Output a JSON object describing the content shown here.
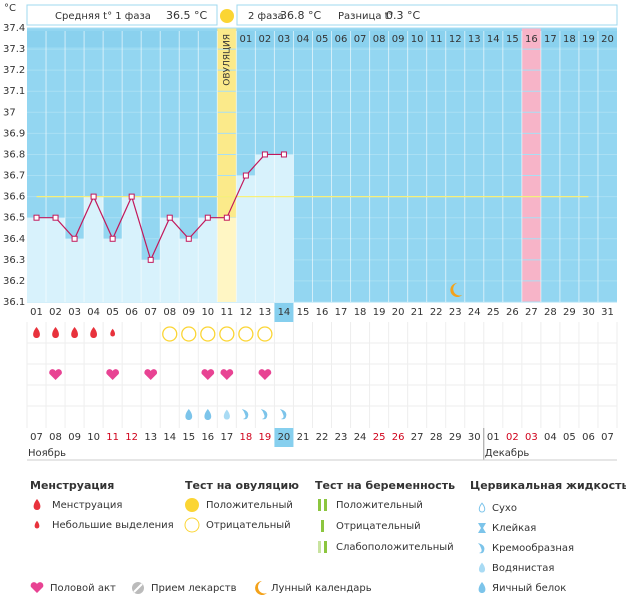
{
  "header": {
    "phase1_label": "Средняя t° 1 фаза",
    "phase1_value": "36.5 °C",
    "phase2_label": "2 фаза",
    "phase2_value": "36.8 °C",
    "diff_label": "Разница t°",
    "diff_value": "0.3 °C"
  },
  "chart_data": {
    "type": "line",
    "y_unit": "°C",
    "ylim": [
      36.1,
      37.4
    ],
    "yticks": [
      36.1,
      36.2,
      36.3,
      36.4,
      36.5,
      36.6,
      36.7,
      36.8,
      36.9,
      37,
      37.1,
      37.2,
      37.3,
      37.4
    ],
    "ovulation_label": "ОВУЛЯЦИЯ",
    "ovulation_column": 11,
    "marked_column": 27,
    "highlight_column": 14,
    "highlight_date_column": 14,
    "moon_column": 23,
    "coverline": 36.6,
    "cycle_days": [
      "01",
      "02",
      "03",
      "04",
      "05",
      "06",
      "07",
      "08",
      "09",
      "10",
      "11",
      "12",
      "13",
      "14",
      "15",
      "16",
      "17",
      "18",
      "19",
      "20",
      "21",
      "22",
      "23",
      "24",
      "25",
      "26",
      "27",
      "28",
      "29",
      "30",
      "31"
    ],
    "post_ovulation_days": [
      null,
      null,
      null,
      null,
      null,
      null,
      null,
      null,
      null,
      null,
      null,
      "01",
      "02",
      "03",
      "04",
      "05",
      "06",
      "07",
      "08",
      "09",
      "10",
      "11",
      "12",
      "13",
      "14",
      "15",
      "16",
      "17",
      "18",
      "19",
      "20"
    ],
    "temps": [
      36.5,
      36.5,
      36.4,
      36.6,
      36.4,
      36.6,
      36.3,
      36.5,
      36.4,
      36.5,
      36.5,
      36.7,
      36.8,
      36.8,
      null,
      null,
      null,
      null,
      null,
      null,
      null,
      null,
      null,
      null,
      null,
      null,
      null,
      null,
      null,
      null,
      null
    ],
    "dates": [
      "07",
      "08",
      "09",
      "10",
      "11",
      "12",
      "13",
      "14",
      "15",
      "16",
      "17",
      "18",
      "19",
      "20",
      "21",
      "22",
      "23",
      "24",
      "25",
      "26",
      "27",
      "28",
      "29",
      "30",
      "01",
      "02",
      "03",
      "04",
      "05",
      "06",
      "07"
    ],
    "red_dates": [
      4,
      5,
      11,
      12,
      18,
      19,
      25,
      26
    ],
    "months": [
      {
        "label": "Ноябрь",
        "start": 0
      },
      {
        "label": "Декабрь",
        "start": 24
      }
    ],
    "menstruation": [
      "heavy",
      "heavy",
      "heavy",
      "heavy",
      "light"
    ],
    "ovulation_tests": [
      null,
      null,
      null,
      null,
      null,
      null,
      null,
      "neg",
      "neg",
      "neg",
      "neg",
      "neg",
      "neg"
    ],
    "intercourse": [
      2,
      5,
      7,
      10,
      11,
      13
    ],
    "cervical_fluid": [
      null,
      null,
      null,
      null,
      null,
      null,
      null,
      null,
      "egg",
      "egg",
      "watery",
      "creamy",
      "creamy",
      "creamy"
    ]
  },
  "legend": {
    "menstruation": {
      "title": "Менструация",
      "items": [
        "Менструация",
        "Небольшие выделения"
      ]
    },
    "ovulation_test": {
      "title": "Тест на овуляцию",
      "items": [
        "Положительный",
        "Отрицательный"
      ]
    },
    "pregnancy_test": {
      "title": "Тест на беременность",
      "items": [
        "Положительный",
        "Отрицательный",
        "Слабоположительный"
      ]
    },
    "cervical": {
      "title": "Цервикальная жидкость",
      "items": [
        "Сухо",
        "Клейкая",
        "Кремообразная",
        "Водянистая",
        "Яичный белок"
      ]
    },
    "other": [
      "Половой акт",
      "Прием лекарств",
      "Лунный календарь"
    ]
  }
}
